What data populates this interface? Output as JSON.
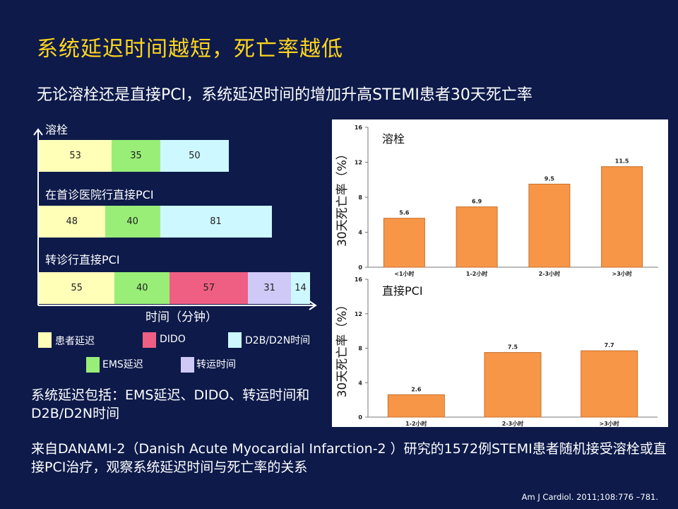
{
  "title": "系统延迟时间越短，死亡率越低",
  "subtitle": "无论溶栓还是直接PCI，系统延迟时间的增加升高STEMI患者30天死亡率",
  "stacked_bar": {
    "axis_label": "时间（分钟）",
    "colors": {
      "patient_delay": "#ffffb8",
      "ems_delay": "#99ee77",
      "dido": "#ef5f84",
      "transport": "#cfc9f7",
      "d2b": "#cdf8ff"
    },
    "groups": [
      {
        "label": "溶栓",
        "segments": [
          {
            "key": "patient_delay",
            "value": 53
          },
          {
            "key": "ems_delay",
            "value": 35
          },
          {
            "key": "d2b",
            "value": 50
          }
        ]
      },
      {
        "label": "在首诊医院行直接PCI",
        "segments": [
          {
            "key": "patient_delay",
            "value": 48
          },
          {
            "key": "ems_delay",
            "value": 40
          },
          {
            "key": "d2b",
            "value": 81
          }
        ]
      },
      {
        "label": "转诊行直接PCI",
        "segments": [
          {
            "key": "patient_delay",
            "value": 55
          },
          {
            "key": "ems_delay",
            "value": 40
          },
          {
            "key": "dido",
            "value": 57
          },
          {
            "key": "transport",
            "value": 31
          },
          {
            "key": "d2b",
            "value": 14
          }
        ]
      }
    ],
    "legend": [
      {
        "key": "patient_delay",
        "label": "患者延迟"
      },
      {
        "key": "dido",
        "label": "DIDO"
      },
      {
        "key": "d2b",
        "label": "D2B/D2N时间"
      },
      {
        "key": "ems_delay",
        "label": "EMS延迟"
      },
      {
        "key": "transport",
        "label": "转运时间"
      }
    ]
  },
  "chart_data": [
    {
      "type": "bar",
      "title": "溶栓",
      "ylabel": "30天死亡率（%）",
      "categories": [
        "<1小时",
        "1-2小时",
        "2-3小时",
        ">3小时"
      ],
      "values": [
        5.6,
        6.9,
        9.5,
        11.5
      ],
      "value_labels": [
        "5.6",
        "6.9",
        "9.5",
        "11.5"
      ],
      "ylim": [
        0,
        16
      ],
      "yticks": [
        0,
        4,
        8,
        12,
        16
      ],
      "bar_color": "#f79646"
    },
    {
      "type": "bar",
      "title": "直接PCI",
      "ylabel": "30天死亡率（%）",
      "categories": [
        "1-2小时",
        "2-3小时",
        ">3小时"
      ],
      "values": [
        2.6,
        7.5,
        7.7
      ],
      "value_labels": [
        "2.6",
        "7.5",
        "7.7"
      ],
      "ylim": [
        0,
        16
      ],
      "yticks": [
        0,
        4,
        8,
        12,
        16
      ],
      "bar_color": "#f79646"
    }
  ],
  "summary": "系统延迟包括：EMS延迟、DIDO、转运时间和D2B/D2N时间",
  "source_note": "来自DANAMI-2（Danish Acute Myocardial Infarction-2 ）研究的1572例STEMI患者随机接受溶栓或直接PCI治疗，观察系统延迟时间与死亡率的关系",
  "citation": "Am J Cardiol. 2011;108:776 –781."
}
